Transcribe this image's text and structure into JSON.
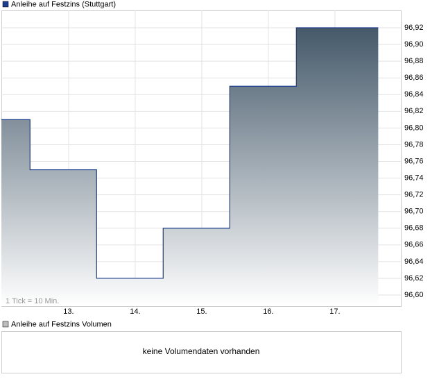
{
  "chart_data": {
    "type": "area",
    "x": [
      11.99,
      12.42,
      12.42,
      13.42,
      13.42,
      14.42,
      14.42,
      15.42,
      15.42,
      16.42,
      16.42,
      17.65
    ],
    "series": [
      {
        "name": "Anleihe auf Festzins (Stuttgart)",
        "color": "#1a3c8c",
        "values": [
          96.81,
          96.81,
          96.75,
          96.75,
          96.62,
          96.62,
          96.68,
          96.68,
          96.85,
          96.85,
          96.92,
          96.92
        ]
      }
    ],
    "xlim": [
      11.99,
      17.99
    ],
    "xticks": [
      {
        "value": 13,
        "label": "13."
      },
      {
        "value": 14,
        "label": "14."
      },
      {
        "value": 15,
        "label": "15."
      },
      {
        "value": 16,
        "label": "16."
      },
      {
        "value": 17,
        "label": "17."
      }
    ],
    "ylim": [
      96.5867,
      96.9408
    ],
    "yticks": [
      {
        "value": 96.6,
        "label": "96,60"
      },
      {
        "value": 96.62,
        "label": "96,62"
      },
      {
        "value": 96.64,
        "label": "96,64"
      },
      {
        "value": 96.66,
        "label": "96,66"
      },
      {
        "value": 96.68,
        "label": "96,68"
      },
      {
        "value": 96.7,
        "label": "96,70"
      },
      {
        "value": 96.72,
        "label": "96,72"
      },
      {
        "value": 96.74,
        "label": "96,74"
      },
      {
        "value": 96.76,
        "label": "96,76"
      },
      {
        "value": 96.78,
        "label": "96,78"
      },
      {
        "value": 96.8,
        "label": "96,80"
      },
      {
        "value": 96.82,
        "label": "96,82"
      },
      {
        "value": 96.84,
        "label": "96,84"
      },
      {
        "value": 96.86,
        "label": "96,86"
      },
      {
        "value": 96.88,
        "label": "96,88"
      },
      {
        "value": 96.9,
        "label": "96,90"
      },
      {
        "value": 96.92,
        "label": "96,92"
      }
    ],
    "grid": true,
    "note": "1 Tick = 10 Min."
  },
  "volume_panel": {
    "title": "Anleihe auf Festzins Volumen",
    "message": "keine Volumendaten vorhanden"
  }
}
